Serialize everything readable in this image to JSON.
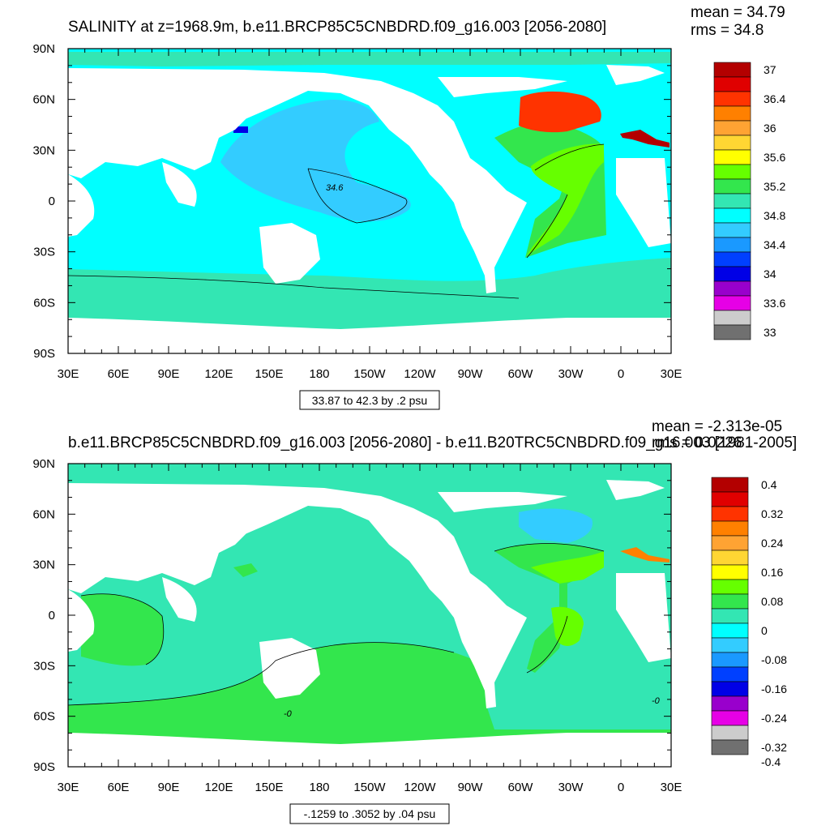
{
  "panels": [
    {
      "title": "SALINITY at z=1968.9m, b.e11.BRCP85C5CNBDRD.f09_g16.003 [2056-2080]",
      "mean": "mean = 34.79",
      "rms": "rms = 34.8",
      "range_label": "33.87 to 42.3 by .2 psu",
      "contour_label": "34.6",
      "lat_ticks": [
        "90N",
        "60N",
        "30N",
        "0",
        "30S",
        "60S",
        "90S"
      ],
      "lon_ticks": [
        "30E",
        "60E",
        "90E",
        "120E",
        "150E",
        "180",
        "150W",
        "120W",
        "90W",
        "60W",
        "30W",
        "0",
        "30E"
      ],
      "colorbar": {
        "colors": [
          "#b30000",
          "#e00000",
          "#ff3300",
          "#ff8000",
          "#ffa333",
          "#ffd633",
          "#ffff00",
          "#66ff00",
          "#33e64d",
          "#33e6b3",
          "#00ffff",
          "#33ccff",
          "#1a99ff",
          "#0040ff",
          "#0000e6",
          "#9900cc",
          "#e600e6",
          "#cccccc",
          "#707070"
        ],
        "labels": [
          "37",
          "36.4",
          "36",
          "35.6",
          "35.2",
          "34.8",
          "34.4",
          "34",
          "33.6",
          "33"
        ],
        "label_slots": [
          0,
          2,
          4,
          6,
          8,
          10,
          12,
          14,
          16,
          18
        ]
      },
      "field": {
        "ocean_base": "#00ffff",
        "southern": "#33e6b3",
        "central_pacific": "#33ccff",
        "atlantic": "#33e64d",
        "atlantic_core": "#66ff00",
        "labrador": "#ff3300",
        "mediterranean": "#b30000",
        "small_patch": "#0000e6"
      }
    },
    {
      "title": "b.e11.BRCP85C5CNBDRD.f09_g16.003 [2056-2080] - b.e11.B20TRC5CNBDRD.f09_g16.003 [1981-2005]",
      "mean": "mean = -2.313e-05",
      "rms": "rms = 0.0226",
      "range_label": "-.1259 to .3052 by .04 psu",
      "contour_label": "-0",
      "lat_ticks": [
        "90N",
        "60N",
        "30N",
        "0",
        "30S",
        "60S",
        "90S"
      ],
      "lon_ticks": [
        "30E",
        "60E",
        "90E",
        "120E",
        "150E",
        "180",
        "150W",
        "120W",
        "90W",
        "60W",
        "30W",
        "0",
        "30E"
      ],
      "colorbar": {
        "colors": [
          "#b30000",
          "#e00000",
          "#ff3300",
          "#ff8000",
          "#ffa333",
          "#ffd633",
          "#ffff00",
          "#66ff00",
          "#33e64d",
          "#33e6b3",
          "#00ffff",
          "#33ccff",
          "#1a99ff",
          "#0040ff",
          "#0000e6",
          "#9900cc",
          "#e600e6",
          "#cccccc",
          "#707070"
        ],
        "labels": [
          "0.4",
          "0.32",
          "0.24",
          "0.16",
          "0.08",
          "0",
          "-0.08",
          "-0.16",
          "-0.24",
          "-0.32",
          "-0.4"
        ],
        "label_slots": [
          0,
          2,
          4,
          6,
          8,
          10,
          12,
          14,
          16,
          18,
          19
        ]
      },
      "field": {
        "ocean_base": "#33e6b3",
        "southern": "#33e64d",
        "indian": "#33e64d",
        "labrador": "#33ccff",
        "atlantic_core": "#66ff00",
        "mediterranean": "#ff8000",
        "small_patch": "#33e64d"
      }
    }
  ]
}
